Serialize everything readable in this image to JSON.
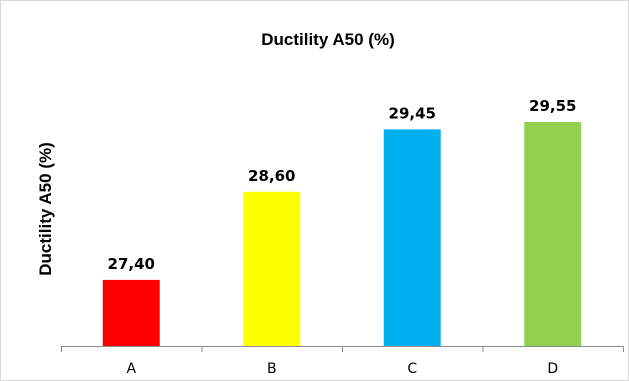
{
  "chart_data": {
    "type": "bar",
    "title": "Ductility A50 (%)",
    "ylabel": "Ductility A50 (%)",
    "xlabel": "",
    "categories": [
      "A",
      "B",
      "C",
      "D"
    ],
    "values": [
      27.4,
      28.6,
      29.45,
      29.55
    ],
    "data_labels": [
      "27,40",
      "28,60",
      "29,45",
      "29,55"
    ],
    "colors": [
      "#ff0000",
      "#ffff00",
      "#00b0f0",
      "#92d050"
    ],
    "ylim": [
      26.5,
      30.0
    ],
    "y_axis_visible": false,
    "grid": false,
    "legend": "none"
  }
}
